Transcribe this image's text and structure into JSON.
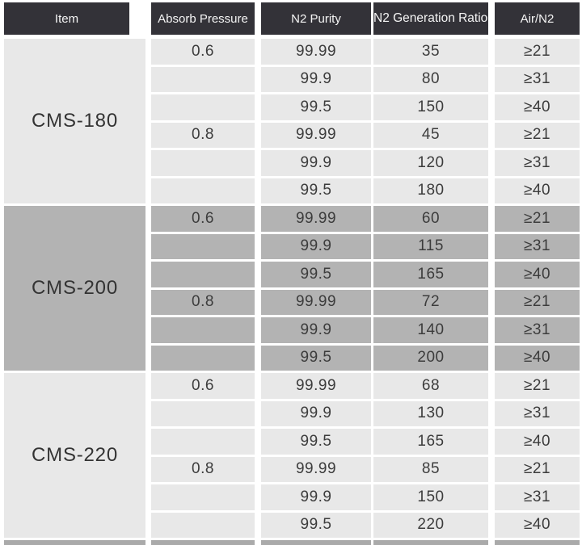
{
  "header": {
    "columns": [
      "Item",
      "Absorb Pressure",
      "N2 Purity",
      "N2 Generation Ratio",
      "Air/N2"
    ]
  },
  "colors": {
    "header_bg": "#333238",
    "header_text": "#f5f5f5",
    "light_group_bg": "#e8e8e8",
    "dark_group_bg": "#b3b3b3",
    "next_group_strip_bg": "#aaaaaa",
    "separator": "#ffffff",
    "body_text": "#3c3c3c"
  },
  "groups": [
    {
      "item": "CMS-180",
      "shade": "light",
      "rows": [
        {
          "pressure": "0.6",
          "purity": "99.99",
          "ratio": "35",
          "air_n2": "≥21"
        },
        {
          "pressure": "",
          "purity": "99.9",
          "ratio": "80",
          "air_n2": "≥31"
        },
        {
          "pressure": "",
          "purity": "99.5",
          "ratio": "150",
          "air_n2": "≥40"
        },
        {
          "pressure": "0.8",
          "purity": "99.99",
          "ratio": "45",
          "air_n2": "≥21"
        },
        {
          "pressure": "",
          "purity": "99.9",
          "ratio": "120",
          "air_n2": "≥31"
        },
        {
          "pressure": "",
          "purity": "99.5",
          "ratio": "180",
          "air_n2": "≥40"
        }
      ]
    },
    {
      "item": "CMS-200",
      "shade": "dark",
      "rows": [
        {
          "pressure": "0.6",
          "purity": "99.99",
          "ratio": "60",
          "air_n2": "≥21"
        },
        {
          "pressure": "",
          "purity": "99.9",
          "ratio": "115",
          "air_n2": "≥31"
        },
        {
          "pressure": "",
          "purity": "99.5",
          "ratio": "165",
          "air_n2": "≥40"
        },
        {
          "pressure": "0.8",
          "purity": "99.99",
          "ratio": "72",
          "air_n2": "≥21"
        },
        {
          "pressure": "",
          "purity": "99.9",
          "ratio": "140",
          "air_n2": "≥31"
        },
        {
          "pressure": "",
          "purity": "99.5",
          "ratio": "200",
          "air_n2": "≥40"
        }
      ]
    },
    {
      "item": "CMS-220",
      "shade": "light",
      "rows": [
        {
          "pressure": "0.6",
          "purity": "99.99",
          "ratio": "68",
          "air_n2": "≥21"
        },
        {
          "pressure": "",
          "purity": "99.9",
          "ratio": "130",
          "air_n2": "≥31"
        },
        {
          "pressure": "",
          "purity": "99.5",
          "ratio": "165",
          "air_n2": "≥40"
        },
        {
          "pressure": "0.8",
          "purity": "99.99",
          "ratio": "85",
          "air_n2": "≥21"
        },
        {
          "pressure": "",
          "purity": "99.9",
          "ratio": "150",
          "air_n2": "≥31"
        },
        {
          "pressure": "",
          "purity": "99.5",
          "ratio": "220",
          "air_n2": "≥40"
        }
      ]
    }
  ],
  "partial_next_group": {
    "shade": "dark"
  }
}
